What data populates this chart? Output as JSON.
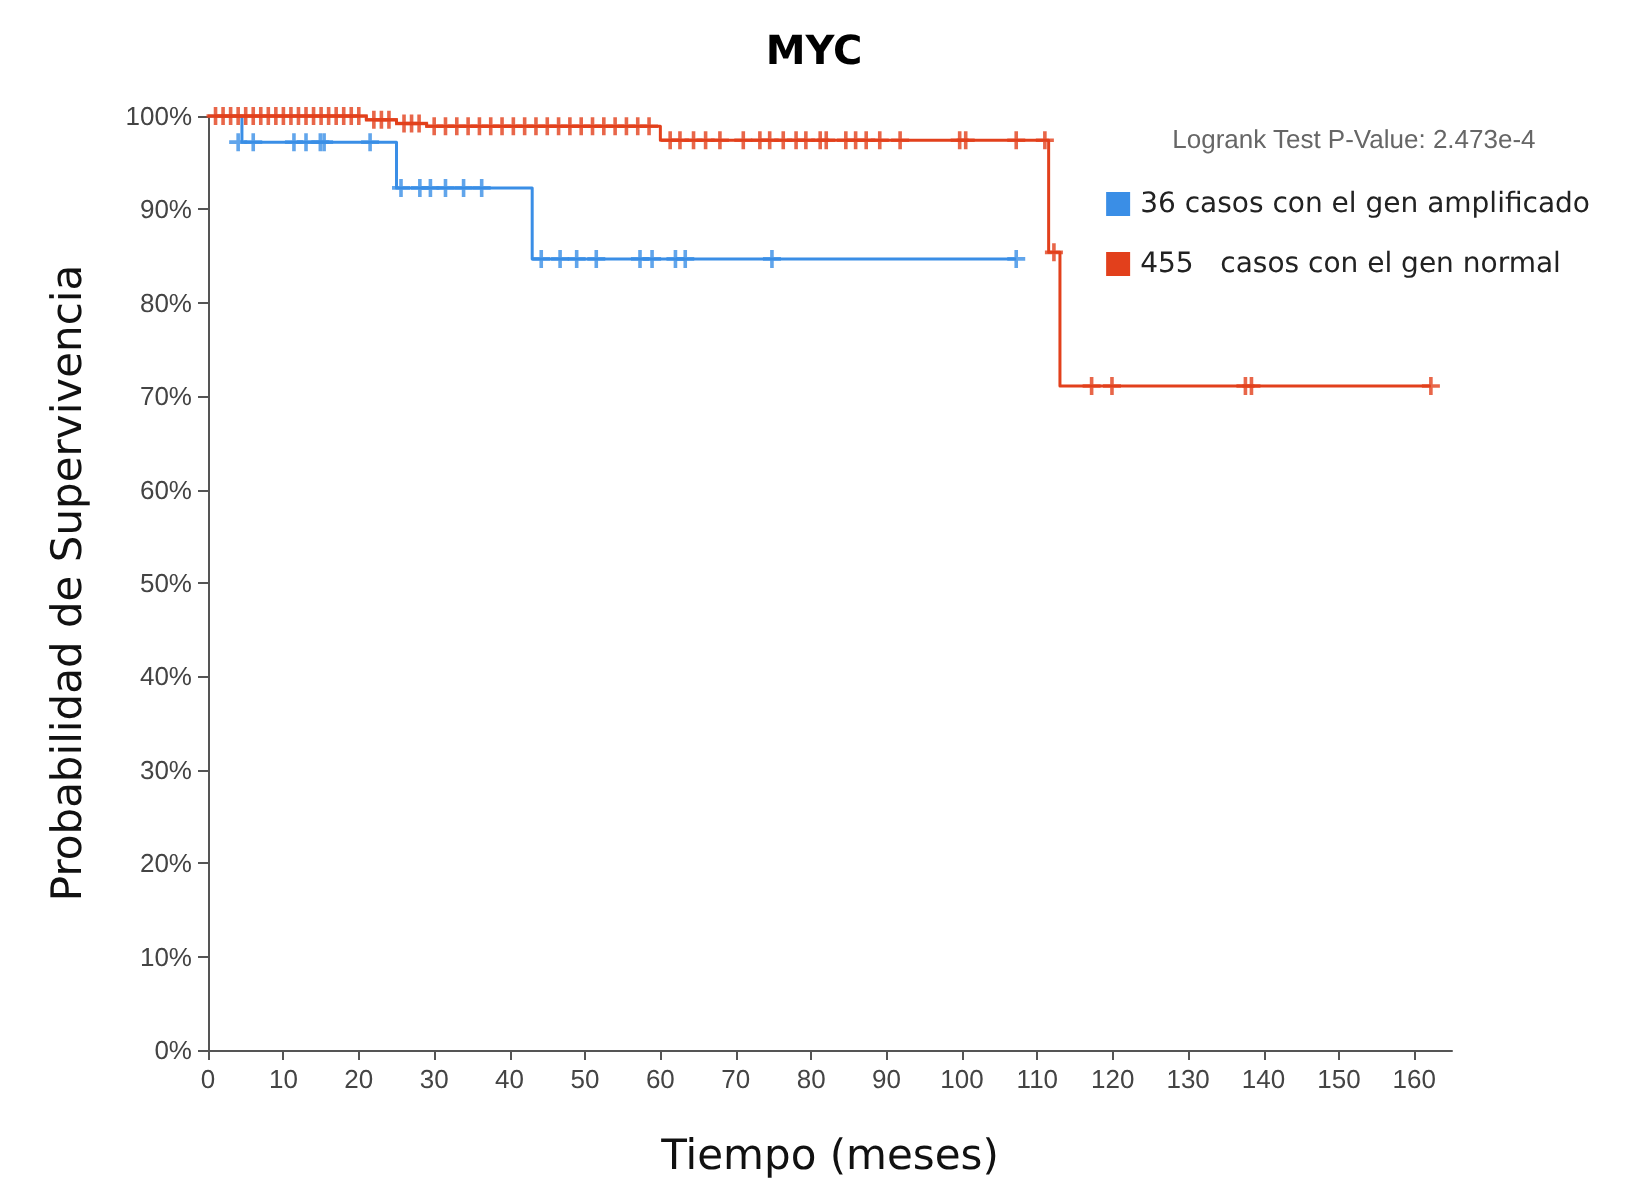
{
  "chart_data": {
    "type": "step",
    "title": "MYC",
    "xlabel": "Tiempo (meses)",
    "ylabel": "Probabilidad de Supervivencia",
    "annotations": [
      "Logrank Test P-Value: 2.473e-4"
    ],
    "xlim": [
      0,
      165
    ],
    "xticks": [
      0,
      10,
      20,
      30,
      40,
      50,
      60,
      70,
      80,
      90,
      100,
      110,
      120,
      130,
      140,
      150,
      160
    ],
    "ylim": [
      0,
      100
    ],
    "yticks": [
      {
        "value": 0,
        "label": "0%"
      },
      {
        "value": 10,
        "label": "10%"
      },
      {
        "value": 20,
        "label": "20%"
      },
      {
        "value": 30,
        "label": "30%"
      },
      {
        "value": 40,
        "label": "40%"
      },
      {
        "value": 50,
        "label": "50%"
      },
      {
        "value": 60,
        "label": "60%"
      },
      {
        "value": 70,
        "label": "70%"
      },
      {
        "value": 80,
        "label": "80%"
      },
      {
        "value": 90,
        "label": "90%"
      },
      {
        "value": 100,
        "label": "100%"
      }
    ],
    "grid": false,
    "legend": "top right",
    "series": [
      {
        "name": "36 casos con el gen amplificado",
        "color": "#3a8ee6",
        "marker": "none",
        "x": [
          0,
          4.5,
          25,
          43,
          107.2
        ],
        "values": [
          100,
          97.2,
          92.3,
          84.7,
          84.7
        ]
      },
      {
        "name": "455   casos con el gen normal",
        "color": "#e2401c",
        "marker": "none",
        "x": [
          0,
          21,
          25,
          29,
          60,
          111.5,
          113,
          162.2
        ],
        "values": [
          100,
          99.6,
          99.2,
          98.9,
          97.4,
          85.4,
          71.1,
          71.1
        ]
      },
      {
        "type": "scatter",
        "color": "#3a8ee6",
        "marker": "cross",
        "x": [
          4,
          6,
          11.4,
          13,
          14.9,
          15.4,
          21.5,
          25.6,
          28.1,
          29.5,
          31.5,
          33.9,
          36.3,
          44.2,
          46.7,
          48.9,
          51.5,
          57.3,
          58.9,
          62,
          63.3,
          74.8,
          107.2
        ],
        "values": [
          97.2,
          97.2,
          97.2,
          97.2,
          97.2,
          97.2,
          97.2,
          92.3,
          92.3,
          92.3,
          92.3,
          92.3,
          92.3,
          84.7,
          84.7,
          84.7,
          84.7,
          84.7,
          84.7,
          84.7,
          84.7,
          84.7,
          84.7
        ]
      },
      {
        "type": "scatter",
        "color": "#e2401c",
        "marker": "cross",
        "x": [
          1,
          2,
          3,
          4,
          5,
          6,
          7,
          8,
          9,
          10,
          11,
          12,
          13,
          14,
          15,
          16,
          17,
          18,
          19,
          20,
          22,
          23,
          24,
          26,
          27,
          28,
          30,
          31.5,
          33,
          34.5,
          36,
          37.5,
          39,
          40.5,
          42,
          43.5,
          45,
          46.5,
          48,
          49.5,
          51,
          52.5,
          54,
          55.5,
          57,
          58.5,
          61.3,
          62.6,
          64.4,
          66,
          67.9,
          71,
          73.2,
          74.5,
          76.3,
          78,
          79.3,
          81.2,
          82,
          84.6,
          85.9,
          87.3,
          89.1,
          91.8,
          99.7,
          100.5,
          107.2,
          111,
          112.2,
          117.2,
          119.9,
          137.6,
          138.4,
          162.2
        ],
        "values": [
          100,
          100,
          100,
          100,
          100,
          100,
          100,
          100,
          100,
          100,
          100,
          100,
          100,
          100,
          100,
          100,
          100,
          100,
          100,
          100,
          99.6,
          99.6,
          99.6,
          99.2,
          99.2,
          99.2,
          98.9,
          98.9,
          98.9,
          98.9,
          98.9,
          98.9,
          98.9,
          98.9,
          98.9,
          98.9,
          98.9,
          98.9,
          98.9,
          98.9,
          98.9,
          98.9,
          98.9,
          98.9,
          98.9,
          98.9,
          97.4,
          97.4,
          97.4,
          97.4,
          97.4,
          97.4,
          97.4,
          97.4,
          97.4,
          97.4,
          97.4,
          97.4,
          97.4,
          97.4,
          97.4,
          97.4,
          97.4,
          97.4,
          97.4,
          97.4,
          97.4,
          97.4,
          85.4,
          71.1,
          71.1,
          71.1,
          71.1,
          71.1
        ]
      }
    ]
  }
}
